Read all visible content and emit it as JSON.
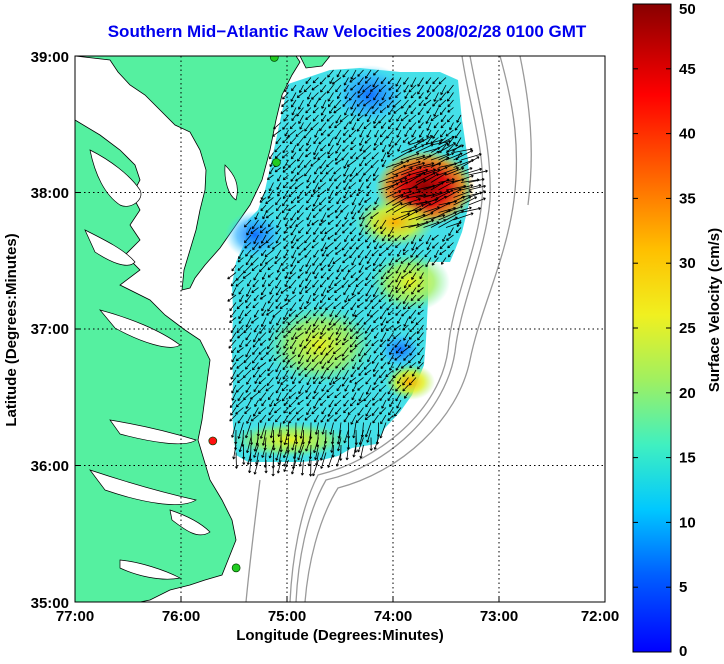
{
  "title": "Southern Mid−Atlantic Raw Velocities 2008/02/28 0100 GMT",
  "map": {
    "xlabel": "Longitude (Degrees:Minutes)",
    "ylabel": "Latitude (Degrees:Minutes)",
    "lon_range": [
      -77,
      -72
    ],
    "lat_range": [
      35,
      39
    ],
    "x_ticks": [
      "77:00",
      "76:00",
      "75:00",
      "74:00",
      "73:00",
      "72:00"
    ],
    "y_ticks": [
      "39:00",
      "38:00",
      "37:00",
      "36:00",
      "35:00"
    ],
    "grid": true,
    "land_color": "#55f0a0",
    "water_color": "#ffffff",
    "bathymetry_color": "#909090"
  },
  "colorbar": {
    "label": "Surface Velocity (cm/s)",
    "min": 0,
    "max": 50,
    "ticks": [
      "0",
      "5",
      "10",
      "15",
      "20",
      "25",
      "30",
      "35",
      "40",
      "45",
      "50"
    ]
  },
  "stations": [
    {
      "lon": -75.12,
      "lat": 38.99,
      "color": "#22cc22"
    },
    {
      "lon": -75.1,
      "lat": 38.22,
      "color": "#22cc22"
    },
    {
      "lon": -75.7,
      "lat": 36.18,
      "color": "#ff1111"
    },
    {
      "lon": -75.48,
      "lat": 35.25,
      "color": "#22cc22"
    }
  ],
  "velocity_hotspots": [
    {
      "lon": -73.35,
      "lat": 38.0,
      "speed": 48
    },
    {
      "lon": -73.7,
      "lat": 37.2,
      "speed": 24
    },
    {
      "lon": -74.6,
      "lat": 36.9,
      "speed": 25
    },
    {
      "lon": -73.85,
      "lat": 36.5,
      "speed": 27
    },
    {
      "lon": -75.4,
      "lat": 37.6,
      "speed": 8
    },
    {
      "lon": -74.3,
      "lat": 38.8,
      "speed": 8
    }
  ]
}
